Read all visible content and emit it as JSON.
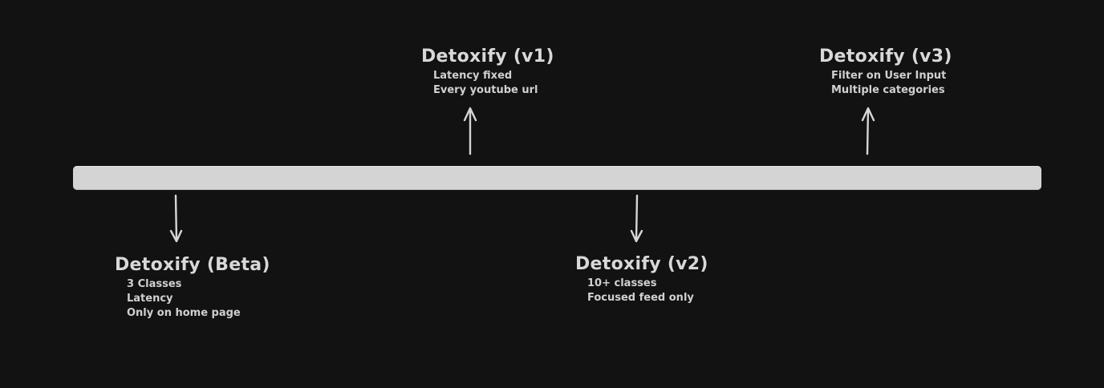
{
  "milestones": [
    {
      "title": "Detoxify (Beta)",
      "notes": [
        "3 Classes",
        "Latency",
        "Only on home page"
      ]
    },
    {
      "title": "Detoxify (v1)",
      "notes": [
        "Latency fixed",
        "Every youtube url"
      ]
    },
    {
      "title": "Detoxify (v2)",
      "notes": [
        "10+ classes",
        "Focused feed only"
      ]
    },
    {
      "title": "Detoxify (v3)",
      "notes": [
        "Filter on User Input",
        "Multiple categories"
      ]
    }
  ],
  "colors": {
    "background": "#121212",
    "timeline": "#d4d4d4",
    "text": "#d8d8d8",
    "arrow": "#d6d6d6"
  }
}
